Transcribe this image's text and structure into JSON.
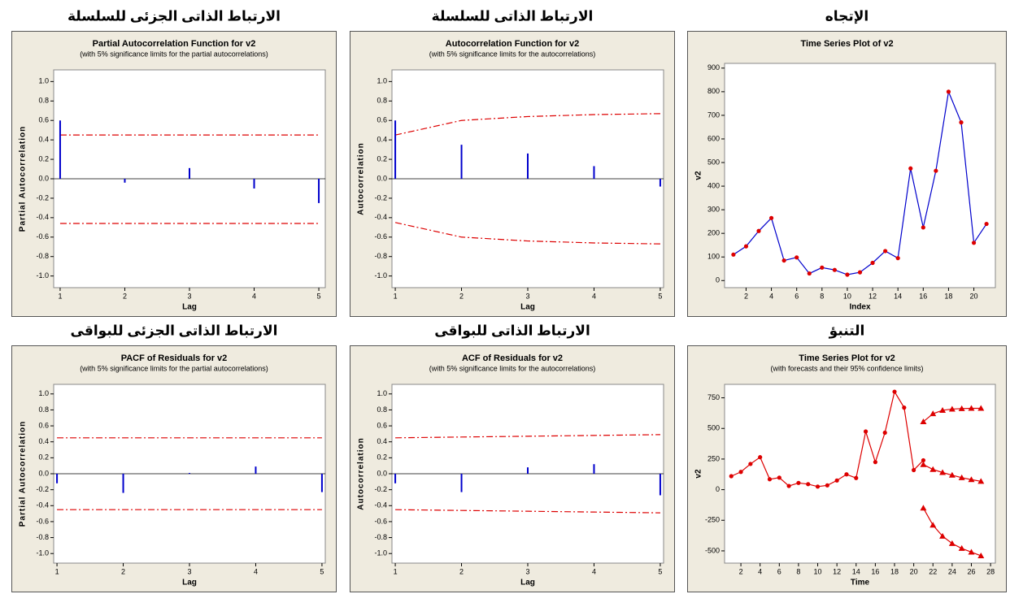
{
  "chart_data": [
    {
      "type": "stem",
      "heading": "الارتباط الذاتى الجزئى للسلسلة",
      "title": "Partial Autocorrelation Function for v2",
      "subtitle": "(with 5% significance limits for the partial autocorrelations)",
      "x_label": "Lag",
      "y_label": "Partial Autocorrelation",
      "x": [
        1,
        2,
        3,
        4,
        5
      ],
      "values": [
        0.6,
        -0.04,
        0.11,
        -0.1,
        -0.25
      ],
      "upper_limit": [
        0.45,
        0.45,
        0.45,
        0.45,
        0.45
      ],
      "lower_limit": [
        -0.46,
        -0.46,
        -0.46,
        -0.46,
        -0.46
      ],
      "color": "#0000cc",
      "limit_color": "#dd0000",
      "xlim": [
        0.9,
        5.1
      ],
      "xticks": [
        1,
        2,
        3,
        4,
        5
      ],
      "ylim": [
        -1.12,
        1.12
      ],
      "yticks": [
        {
          "value": -1,
          "label": "-1.0"
        },
        {
          "value": -0.8,
          "label": "-0.8"
        },
        {
          "value": -0.6,
          "label": "-0.6"
        },
        {
          "value": -0.4,
          "label": "-0.4"
        },
        {
          "value": -0.2,
          "label": "-0.2"
        },
        {
          "value": 0,
          "label": "0.0"
        },
        {
          "value": 0.2,
          "label": "0.2"
        },
        {
          "value": 0.4,
          "label": "0.4"
        },
        {
          "value": 0.6,
          "label": "0.6"
        },
        {
          "value": 0.8,
          "label": "0.8"
        },
        {
          "value": 1,
          "label": "1.0"
        }
      ]
    },
    {
      "type": "stem",
      "heading": "الارتباط الذاتى للسلسلة",
      "title": "Autocorrelation Function for v2",
      "subtitle": "(with 5% significance limits for the autocorrelations)",
      "x_label": "Lag",
      "y_label": "Autocorrelation",
      "x": [
        1,
        2,
        3,
        4,
        5
      ],
      "values": [
        0.6,
        0.35,
        0.26,
        0.13,
        -0.08
      ],
      "upper_limit": [
        0.45,
        0.6,
        0.64,
        0.66,
        0.67
      ],
      "lower_limit": [
        -0.45,
        -0.6,
        -0.64,
        -0.66,
        -0.67
      ],
      "color": "#0000cc",
      "limit_color": "#dd0000",
      "xlim": [
        0.95,
        5.05
      ],
      "xticks": [
        1,
        2,
        3,
        4,
        5
      ],
      "ylim": [
        -1.12,
        1.12
      ],
      "yticks": [
        {
          "value": -1,
          "label": "-1.0"
        },
        {
          "value": -0.8,
          "label": "-0.8"
        },
        {
          "value": -0.6,
          "label": "-0.6"
        },
        {
          "value": -0.4,
          "label": "-0.4"
        },
        {
          "value": -0.2,
          "label": "-0.2"
        },
        {
          "value": 0,
          "label": "0.0"
        },
        {
          "value": 0.2,
          "label": "0.2"
        },
        {
          "value": 0.4,
          "label": "0.4"
        },
        {
          "value": 0.6,
          "label": "0.6"
        },
        {
          "value": 0.8,
          "label": "0.8"
        },
        {
          "value": 1,
          "label": "1.0"
        }
      ]
    },
    {
      "type": "line",
      "heading": "الإتجاه",
      "title": "Time Series Plot of v2",
      "x_label": "Index",
      "y_label": "v2",
      "x": [
        1,
        2,
        3,
        4,
        5,
        6,
        7,
        8,
        9,
        10,
        11,
        12,
        13,
        14,
        15,
        16,
        17,
        18,
        19,
        20,
        21
      ],
      "values": [
        110,
        145,
        210,
        265,
        85,
        98,
        30,
        55,
        45,
        25,
        35,
        75,
        125,
        95,
        475,
        225,
        465,
        800,
        670,
        160,
        240
      ],
      "line_color": "#0000cc",
      "marker_color": "#dd0000",
      "xlim": [
        0.3,
        21.7
      ],
      "xticks": [
        2,
        4,
        6,
        8,
        10,
        12,
        14,
        16,
        18,
        20
      ],
      "ylim": [
        -30,
        920
      ],
      "yticks": [
        0,
        100,
        200,
        300,
        400,
        500,
        600,
        700,
        800,
        900
      ]
    },
    {
      "type": "stem",
      "heading": "الارتباط الذاتى الجزئى للبواقى",
      "title": "PACF of Residuals for v2",
      "subtitle": "(with 5% significance limits for the partial autocorrelations)",
      "x_label": "Lag",
      "y_label": "Partial Autocorrelation",
      "x": [
        1,
        2,
        3,
        4,
        5
      ],
      "values": [
        -0.12,
        -0.24,
        0.01,
        0.09,
        -0.23
      ],
      "upper_limit": [
        0.45,
        0.45,
        0.45,
        0.45,
        0.45
      ],
      "lower_limit": [
        -0.45,
        -0.45,
        -0.45,
        -0.45,
        -0.45
      ],
      "color": "#0000cc",
      "limit_color": "#dd0000",
      "xlim": [
        0.95,
        5.05
      ],
      "xticks": [
        1,
        2,
        3,
        4,
        5
      ],
      "ylim": [
        -1.12,
        1.12
      ],
      "yticks": [
        {
          "value": -1,
          "label": "-1.0"
        },
        {
          "value": -0.8,
          "label": "-0.8"
        },
        {
          "value": -0.6,
          "label": "-0.6"
        },
        {
          "value": -0.4,
          "label": "-0.4"
        },
        {
          "value": -0.2,
          "label": "-0.2"
        },
        {
          "value": 0,
          "label": "0.0"
        },
        {
          "value": 0.2,
          "label": "0.2"
        },
        {
          "value": 0.4,
          "label": "0.4"
        },
        {
          "value": 0.6,
          "label": "0.6"
        },
        {
          "value": 0.8,
          "label": "0.8"
        },
        {
          "value": 1,
          "label": "1.0"
        }
      ]
    },
    {
      "type": "stem",
      "heading": "الارتباط الذاتى للبواقى",
      "title": "ACF of Residuals for v2",
      "subtitle": "(with 5% significance limits for the autocorrelations)",
      "x_label": "Lag",
      "y_label": "Autocorrelation",
      "x": [
        1,
        2,
        3,
        4,
        5
      ],
      "values": [
        -0.12,
        -0.23,
        0.08,
        0.12,
        -0.27
      ],
      "upper_limit": [
        0.45,
        0.46,
        0.47,
        0.48,
        0.49
      ],
      "lower_limit": [
        -0.45,
        -0.46,
        -0.47,
        -0.48,
        -0.49
      ],
      "color": "#0000cc",
      "limit_color": "#dd0000",
      "xlim": [
        0.95,
        5.05
      ],
      "xticks": [
        1,
        2,
        3,
        4,
        5
      ],
      "ylim": [
        -1.12,
        1.12
      ],
      "yticks": [
        {
          "value": -1,
          "label": "-1.0"
        },
        {
          "value": -0.8,
          "label": "-0.8"
        },
        {
          "value": -0.6,
          "label": "-0.6"
        },
        {
          "value": -0.4,
          "label": "-0.4"
        },
        {
          "value": -0.2,
          "label": "-0.2"
        },
        {
          "value": 0,
          "label": "0.0"
        },
        {
          "value": 0.2,
          "label": "0.2"
        },
        {
          "value": 0.4,
          "label": "0.4"
        },
        {
          "value": 0.6,
          "label": "0.6"
        },
        {
          "value": 0.8,
          "label": "0.8"
        },
        {
          "value": 1,
          "label": "1.0"
        }
      ]
    },
    {
      "type": "line",
      "heading": "التنبؤ",
      "title": "Time Series Plot for v2",
      "subtitle": "(with forecasts and their 95% confidence limits)",
      "x_label": "Time",
      "y_label": "v2",
      "x": [
        1,
        2,
        3,
        4,
        5,
        6,
        7,
        8,
        9,
        10,
        11,
        12,
        13,
        14,
        15,
        16,
        17,
        18,
        19,
        20,
        21
      ],
      "values": [
        110,
        145,
        210,
        265,
        85,
        98,
        30,
        55,
        45,
        25,
        35,
        75,
        125,
        95,
        475,
        225,
        465,
        800,
        670,
        160,
        240
      ],
      "forecast_x": [
        21,
        22,
        23,
        24,
        25,
        26,
        27
      ],
      "forecast": [
        205,
        165,
        140,
        118,
        98,
        82,
        68
      ],
      "upper_limit": [
        555,
        620,
        648,
        658,
        662,
        664,
        664
      ],
      "lower_limit": [
        -150,
        -290,
        -380,
        -440,
        -480,
        -510,
        -540
      ],
      "line_color": "#dd0000",
      "marker_color": "#dd0000",
      "xlim": [
        0.3,
        28.5
      ],
      "xticks": [
        2,
        4,
        6,
        8,
        10,
        12,
        14,
        16,
        18,
        20,
        22,
        24,
        26,
        28
      ],
      "ylim": [
        -600,
        860
      ],
      "yticks": [
        -500,
        -250,
        0,
        250,
        500,
        750
      ]
    }
  ]
}
